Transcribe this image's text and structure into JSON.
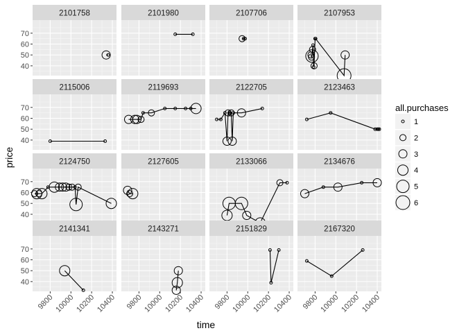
{
  "chart_data": {
    "type": "scatter",
    "facet": "small-multiples",
    "xlabel": "time",
    "ylabel": "price",
    "xlim": [
      9630,
      10440
    ],
    "ylim": [
      31,
      82
    ],
    "x_ticks": [
      9800,
      10000,
      10200,
      10400
    ],
    "y_ticks": [
      40,
      50,
      60,
      70
    ],
    "grid": true,
    "legend": {
      "title": "all.purchases",
      "position": "right",
      "sizes": [
        1,
        2,
        3,
        4,
        5,
        6
      ]
    },
    "panels": [
      {
        "id": "2101758",
        "points": [
          [
            10340,
            50,
            3
          ],
          [
            10360,
            50,
            1
          ]
        ]
      },
      {
        "id": "2101980",
        "points": [
          [
            10150,
            69,
            1
          ],
          [
            10320,
            69,
            1
          ]
        ]
      },
      {
        "id": "2107706",
        "points": [
          [
            9945,
            65,
            2
          ],
          [
            9960,
            65,
            1
          ],
          [
            9975,
            65,
            1
          ]
        ]
      },
      {
        "id": "2107953",
        "points": [
          [
            9760,
            50,
            2
          ],
          [
            9765,
            48,
            2
          ],
          [
            9770,
            49,
            5
          ],
          [
            9775,
            55,
            2
          ],
          [
            9780,
            59,
            1
          ],
          [
            9785,
            39,
            1
          ],
          [
            9790,
            40,
            2
          ],
          [
            9800,
            65,
            1
          ],
          [
            9805,
            65,
            1
          ],
          [
            10080,
            31,
            6
          ],
          [
            10090,
            50,
            3
          ]
        ]
      },
      {
        "id": "2115006",
        "points": [
          [
            9800,
            39,
            1
          ],
          [
            10330,
            39,
            1
          ]
        ]
      },
      {
        "id": "2119693",
        "points": [
          [
            9700,
            59,
            3
          ],
          [
            9760,
            59,
            3
          ],
          [
            9780,
            59,
            3
          ],
          [
            9820,
            59,
            2
          ],
          [
            9840,
            65,
            1
          ],
          [
            9920,
            65,
            2
          ],
          [
            10050,
            69,
            1
          ],
          [
            10150,
            69,
            1
          ],
          [
            10250,
            69,
            1
          ],
          [
            10300,
            69,
            1
          ],
          [
            10350,
            69,
            4
          ]
        ]
      },
      {
        "id": "2122705",
        "points": [
          [
            9700,
            59,
            1
          ],
          [
            9740,
            59,
            1
          ],
          [
            9780,
            65,
            1
          ],
          [
            9800,
            39,
            3
          ],
          [
            9810,
            65,
            2
          ],
          [
            9820,
            65,
            1
          ],
          [
            9830,
            65,
            1
          ],
          [
            9840,
            65,
            2
          ],
          [
            9850,
            39,
            3
          ],
          [
            9860,
            65,
            1
          ],
          [
            9940,
            65,
            3
          ],
          [
            10140,
            69,
            1
          ]
        ]
      },
      {
        "id": "2123463",
        "points": [
          [
            9720,
            59,
            1
          ],
          [
            9950,
            65,
            1
          ],
          [
            10380,
            50,
            1
          ],
          [
            10400,
            50,
            1
          ],
          [
            10410,
            50,
            1
          ],
          [
            10420,
            50,
            1
          ]
        ]
      },
      {
        "id": "2124750",
        "points": [
          [
            9650,
            59,
            2
          ],
          [
            9670,
            59,
            4
          ],
          [
            9690,
            59,
            2
          ],
          [
            9720,
            59,
            4
          ],
          [
            9780,
            65,
            1
          ],
          [
            9840,
            65,
            4
          ],
          [
            9890,
            65,
            3
          ],
          [
            9920,
            65,
            3
          ],
          [
            9950,
            65,
            3
          ],
          [
            9980,
            65,
            2
          ],
          [
            10010,
            65,
            2
          ],
          [
            10040,
            65,
            1
          ],
          [
            10050,
            49,
            5
          ],
          [
            10070,
            65,
            2
          ],
          [
            10390,
            50,
            4
          ]
        ]
      },
      {
        "id": "2127605",
        "points": [
          [
            9690,
            62,
            3
          ],
          [
            9710,
            59,
            2
          ],
          [
            9740,
            59,
            4
          ]
        ]
      },
      {
        "id": "2133066",
        "points": [
          [
            9800,
            39,
            4
          ],
          [
            9820,
            50,
            5
          ],
          [
            9940,
            50,
            5
          ],
          [
            9990,
            39,
            3
          ],
          [
            10120,
            32,
            4
          ],
          [
            10310,
            69,
            2
          ],
          [
            10380,
            69,
            1
          ]
        ]
      },
      {
        "id": "2134676",
        "points": [
          [
            9700,
            59,
            3
          ],
          [
            9880,
            65,
            1
          ],
          [
            10020,
            65,
            3
          ],
          [
            10250,
            69,
            1
          ],
          [
            10400,
            69,
            3
          ]
        ]
      },
      {
        "id": "2141341",
        "points": [
          [
            9940,
            50,
            4
          ],
          [
            10120,
            32,
            1
          ]
        ]
      },
      {
        "id": "2143271",
        "points": [
          [
            10160,
            32,
            3
          ],
          [
            10170,
            39,
            4
          ],
          [
            10180,
            50,
            3
          ]
        ]
      },
      {
        "id": "2151829",
        "points": [
          [
            10215,
            69,
            1
          ],
          [
            10225,
            39,
            1
          ],
          [
            10300,
            69,
            1
          ]
        ]
      },
      {
        "id": "2167320",
        "points": [
          [
            9720,
            59,
            1
          ],
          [
            9960,
            45,
            1
          ],
          [
            10260,
            69,
            1
          ]
        ]
      }
    ]
  }
}
